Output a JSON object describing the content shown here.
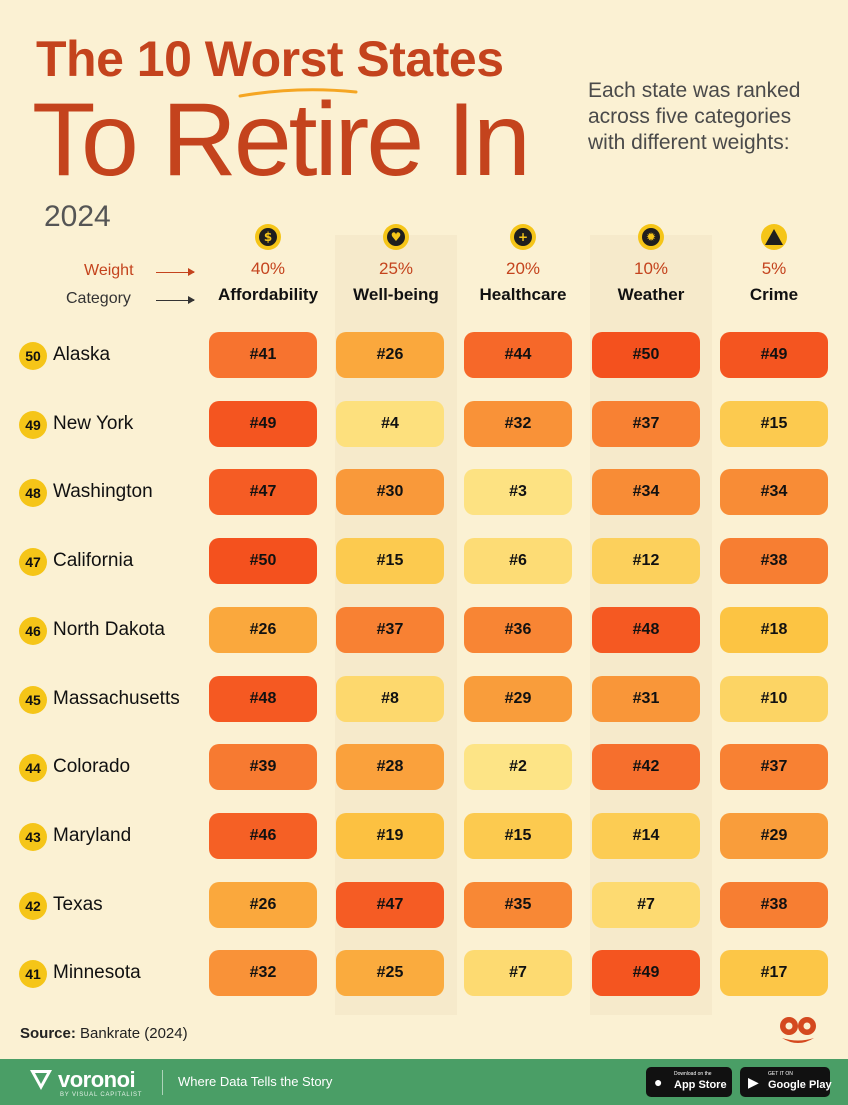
{
  "title": {
    "line1": "The 10 Worst States",
    "line2": "To Retire In",
    "year": "2024"
  },
  "intro": [
    "Each state was ranked",
    "across five categories",
    "with different weights:"
  ],
  "labels": {
    "weight": "Weight",
    "category": "Category"
  },
  "categories": [
    {
      "icon": "dollar-icon",
      "weight": "40%",
      "name": "Affordability"
    },
    {
      "icon": "heart-icon",
      "weight": "25%",
      "name": "Well-being"
    },
    {
      "icon": "hospital-icon",
      "weight": "20%",
      "name": "Healthcare"
    },
    {
      "icon": "sun-icon",
      "weight": "10%",
      "name": "Weather"
    },
    {
      "icon": "warning-icon",
      "weight": "5%",
      "name": "Crime"
    }
  ],
  "chart_data": {
    "type": "table",
    "title": "The 10 Worst States To Retire In",
    "subtitle": "2024",
    "columns": [
      "Affordability",
      "Well-being",
      "Healthcare",
      "Weather",
      "Crime"
    ],
    "weights": [
      "40%",
      "25%",
      "20%",
      "10%",
      "5%"
    ],
    "rows": [
      {
        "overall_rank": "50",
        "state": "Alaska",
        "ranks": [
          41,
          26,
          44,
          50,
          49
        ]
      },
      {
        "overall_rank": "49",
        "state": "New York",
        "ranks": [
          49,
          4,
          32,
          37,
          15
        ]
      },
      {
        "overall_rank": "48",
        "state": "Washington",
        "ranks": [
          47,
          30,
          3,
          34,
          34
        ]
      },
      {
        "overall_rank": "47",
        "state": "California",
        "ranks": [
          50,
          15,
          6,
          12,
          38
        ]
      },
      {
        "overall_rank": "46",
        "state": "North Dakota",
        "ranks": [
          26,
          37,
          36,
          48,
          18
        ]
      },
      {
        "overall_rank": "45",
        "state": "Massachusetts",
        "ranks": [
          48,
          8,
          29,
          31,
          10
        ]
      },
      {
        "overall_rank": "44",
        "state": "Colorado",
        "ranks": [
          39,
          28,
          2,
          42,
          37
        ]
      },
      {
        "overall_rank": "43",
        "state": "Maryland",
        "ranks": [
          46,
          19,
          15,
          14,
          29
        ]
      },
      {
        "overall_rank": "42",
        "state": "Texas",
        "ranks": [
          26,
          47,
          35,
          7,
          38
        ]
      },
      {
        "overall_rank": "41",
        "state": "Minnesota",
        "ranks": [
          32,
          25,
          7,
          49,
          17
        ]
      }
    ],
    "color_scale": {
      "low": "#FDE68A",
      "high": "#F4511E"
    }
  },
  "source": {
    "label": "Source:",
    "text": "Bankrate (2024)"
  },
  "footer": {
    "brand": "voronoi",
    "brand_sub": "BY VISUAL CAPITALIST",
    "tagline": "Where Data Tells the Story",
    "app_store_small": "Download on the",
    "app_store": "App Store",
    "google_play_small": "GET IT ON",
    "google_play": "Google Play"
  }
}
